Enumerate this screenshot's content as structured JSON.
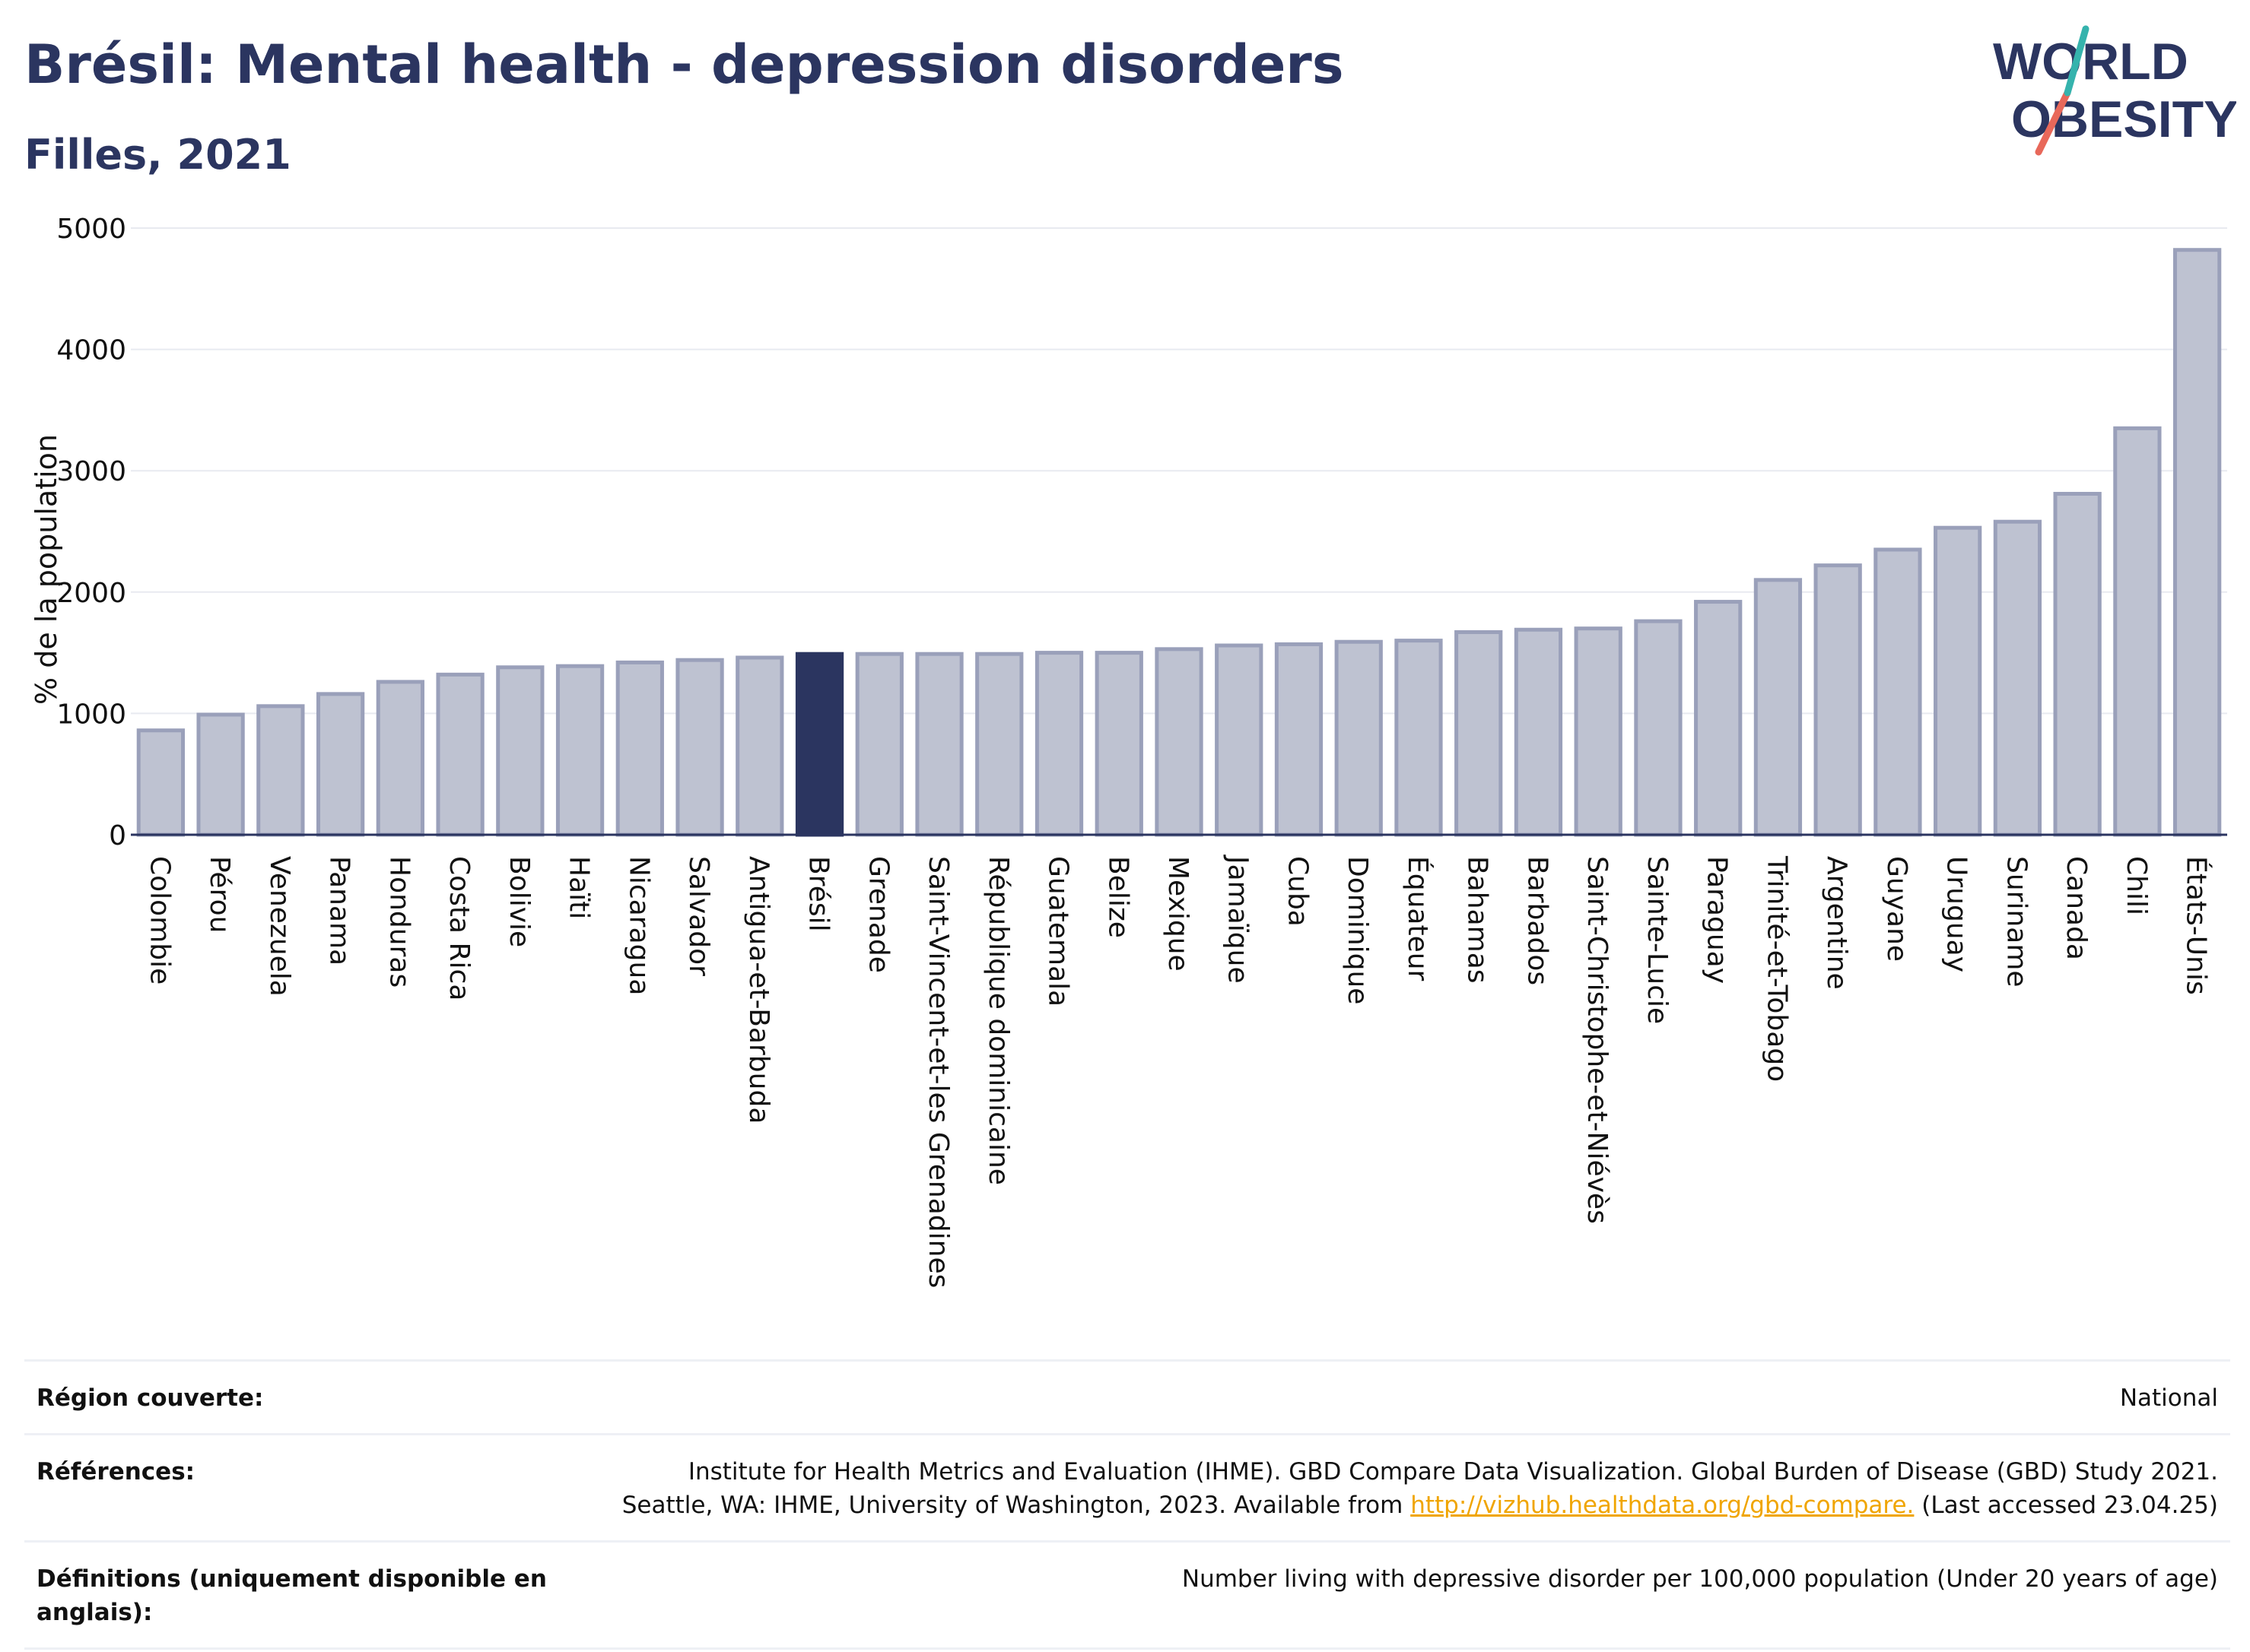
{
  "title": "Brésil: Mental health - depression disorders",
  "subtitle": "Filles, 2021",
  "logo": {
    "line1": "WORLD",
    "line2": "OBESITY",
    "colors": [
      "#2b3560",
      "#e8685a",
      "#35b3ad"
    ]
  },
  "colors": {
    "bar": "#bec2d1",
    "bar_border": "#9aa0ba",
    "highlight": "#2b3560",
    "grid": "#e8eaf0",
    "text": "#2b3560",
    "link": "#f0a500"
  },
  "chart_data": {
    "type": "bar",
    "ylabel": "% de la population",
    "xlabel": "",
    "ylim": [
      0,
      5000
    ],
    "yticks": [
      0,
      1000,
      2000,
      3000,
      4000,
      5000
    ],
    "grid": true,
    "highlight": "Brésil",
    "categories": [
      "Colombie",
      "Pérou",
      "Venezuela",
      "Panama",
      "Honduras",
      "Costa Rica",
      "Bolivie",
      "Haïti",
      "Nicaragua",
      "Salvador",
      "Antigua-et-Barbuda",
      "Brésil",
      "Grenade",
      "Saint-Vincent-et-les Grenadines",
      "République dominicaine",
      "Guatemala",
      "Belize",
      "Mexique",
      "Jamaïque",
      "Cuba",
      "Dominique",
      "Équateur",
      "Bahamas",
      "Barbados",
      "Saint-Christophe-et-Niévès",
      "Sainte-Lucie",
      "Paraguay",
      "Trinité-et-Tobago",
      "Argentine",
      "Guyane",
      "Uruguay",
      "Suriname",
      "Canada",
      "Chili",
      "États-Unis"
    ],
    "values": [
      860,
      990,
      1060,
      1160,
      1260,
      1320,
      1380,
      1390,
      1420,
      1440,
      1460,
      1490,
      1490,
      1490,
      1490,
      1500,
      1500,
      1530,
      1560,
      1570,
      1590,
      1600,
      1670,
      1690,
      1700,
      1760,
      1920,
      2100,
      2220,
      2350,
      2530,
      2580,
      2810,
      3350,
      4820
    ]
  },
  "info": {
    "region_label": "Région couverte:",
    "region_value": "National",
    "references_label": "Références:",
    "references_line1": "Institute for Health Metrics and Evaluation (IHME). GBD Compare Data Visualization. Global Burden of Disease (GBD) Study 2021.",
    "references_line2_pre": "Seattle, WA: IHME, University of Washington, 2023. Available from",
    "references_link": "http://vizhub.healthdata.org/gbd-compare.",
    "references_line2_post": "(Last accessed 23.04.25)",
    "definitions_label": "Définitions (uniquement disponible en anglais):",
    "definitions_value": "Number living with depressive disorder per 100,000 population (Under 20 years of age)"
  }
}
